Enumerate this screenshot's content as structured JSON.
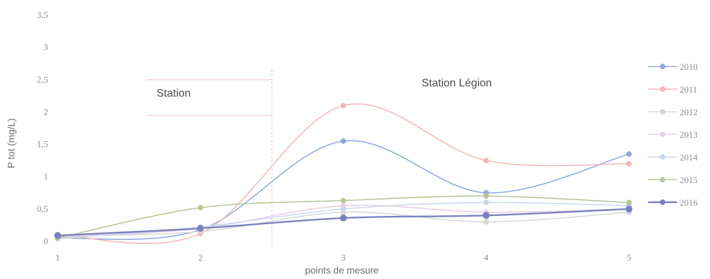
{
  "chart_data": {
    "type": "line",
    "xlabel": "points de mesure",
    "ylabel": "P tot (mg/L)",
    "x": [
      "1",
      "2",
      "3",
      "4",
      "5"
    ],
    "y_ticks": [
      "0",
      "0,5",
      "1",
      "1,5",
      "2",
      "2,5",
      "3",
      "3,5"
    ],
    "ylim": [
      0,
      3.5
    ],
    "grid": false,
    "legend_position": "right",
    "annotations": [
      "Station",
      "Station Légion"
    ],
    "series": [
      {
        "name": "2010",
        "values": [
          0.05,
          0.18,
          1.55,
          0.75,
          1.35
        ],
        "color": "#8fa9dc"
      },
      {
        "name": "2011",
        "values": [
          0.1,
          0.12,
          2.1,
          1.25,
          1.2
        ],
        "color": "#f2b8b8"
      },
      {
        "name": "2012",
        "values": [
          0.08,
          0.15,
          0.45,
          0.3,
          0.45
        ],
        "color": "#d8d8d8"
      },
      {
        "name": "2013",
        "values": [
          0.06,
          0.2,
          0.55,
          0.45,
          0.5
        ],
        "color": "#e9cfe6"
      },
      {
        "name": "2014",
        "values": [
          0.04,
          0.22,
          0.5,
          0.6,
          0.55
        ],
        "color": "#c9d7ef"
      },
      {
        "name": "2015",
        "values": [
          0.05,
          0.52,
          0.63,
          0.7,
          0.6
        ],
        "color": "#b6c79a"
      },
      {
        "name": "2016",
        "values": [
          0.09,
          0.2,
          0.36,
          0.4,
          0.5
        ],
        "color": "#7b80c0"
      }
    ]
  }
}
